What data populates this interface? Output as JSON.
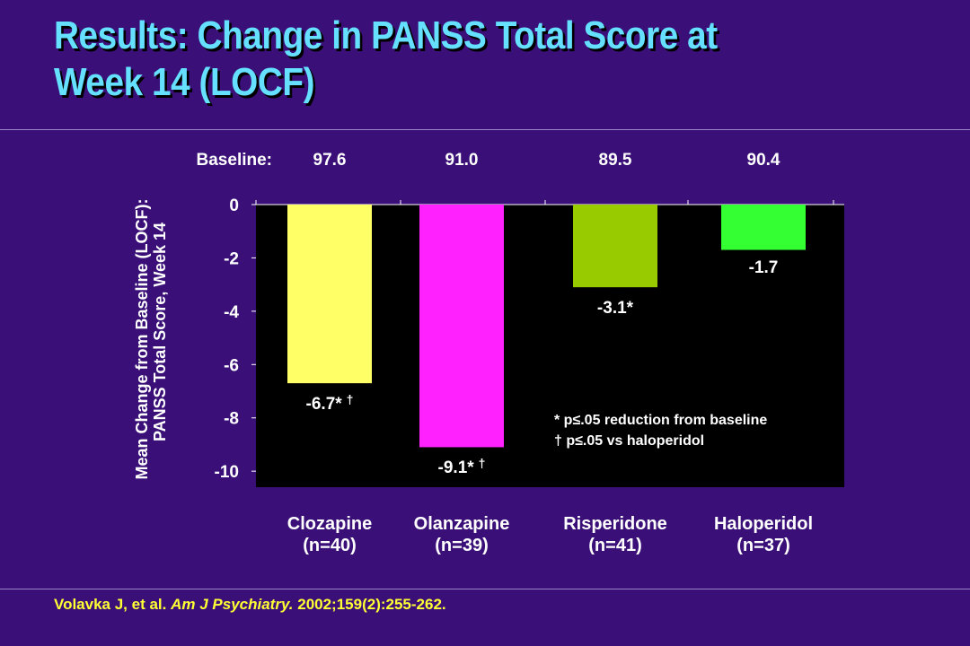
{
  "slide": {
    "title_line1": "Results: Change in PANSS Total Score at",
    "title_line2": "Week 14  (LOCF)",
    "citation_authors": "Volavka J, et al.",
    "citation_journal": "Am J Psychiatry.",
    "citation_details": "2002;159(2):255-262."
  },
  "colors": {
    "background": "#3a1078",
    "title": "#66e0ff",
    "plot_area": "#000000",
    "citation": "#ffff33"
  },
  "chart_data": {
    "type": "bar",
    "ylabel_line1": "Mean Change from Baseline (LOCF):",
    "ylabel_line2": "PANSS Total Score, Week 14",
    "ylim": [
      -10.6,
      0
    ],
    "yticks": [
      0,
      -2,
      -4,
      -6,
      -8,
      -10
    ],
    "baseline_label": "Baseline:",
    "baselines": [
      "97.6",
      "91.0",
      "89.5",
      "90.4"
    ],
    "categories": [
      "Clozapine",
      "Olanzapine",
      "Risperidone",
      "Haloperidol"
    ],
    "category_sublabels": [
      "(n=40)",
      "(n=39)",
      "(n=41)",
      "(n=37)"
    ],
    "values": [
      -6.7,
      -9.1,
      -3.1,
      -1.7
    ],
    "value_labels": [
      "-6.7*",
      "-9.1*",
      "-3.1*",
      "-1.7"
    ],
    "value_label_daggers": [
      "†",
      "†",
      "",
      ""
    ],
    "bar_colors": [
      "#ffff66",
      "#ff22ff",
      "#99cc00",
      "#33ff33"
    ],
    "legend": [
      "* p≤.05 reduction from baseline",
      "† p≤.05 vs haloperidol"
    ]
  }
}
